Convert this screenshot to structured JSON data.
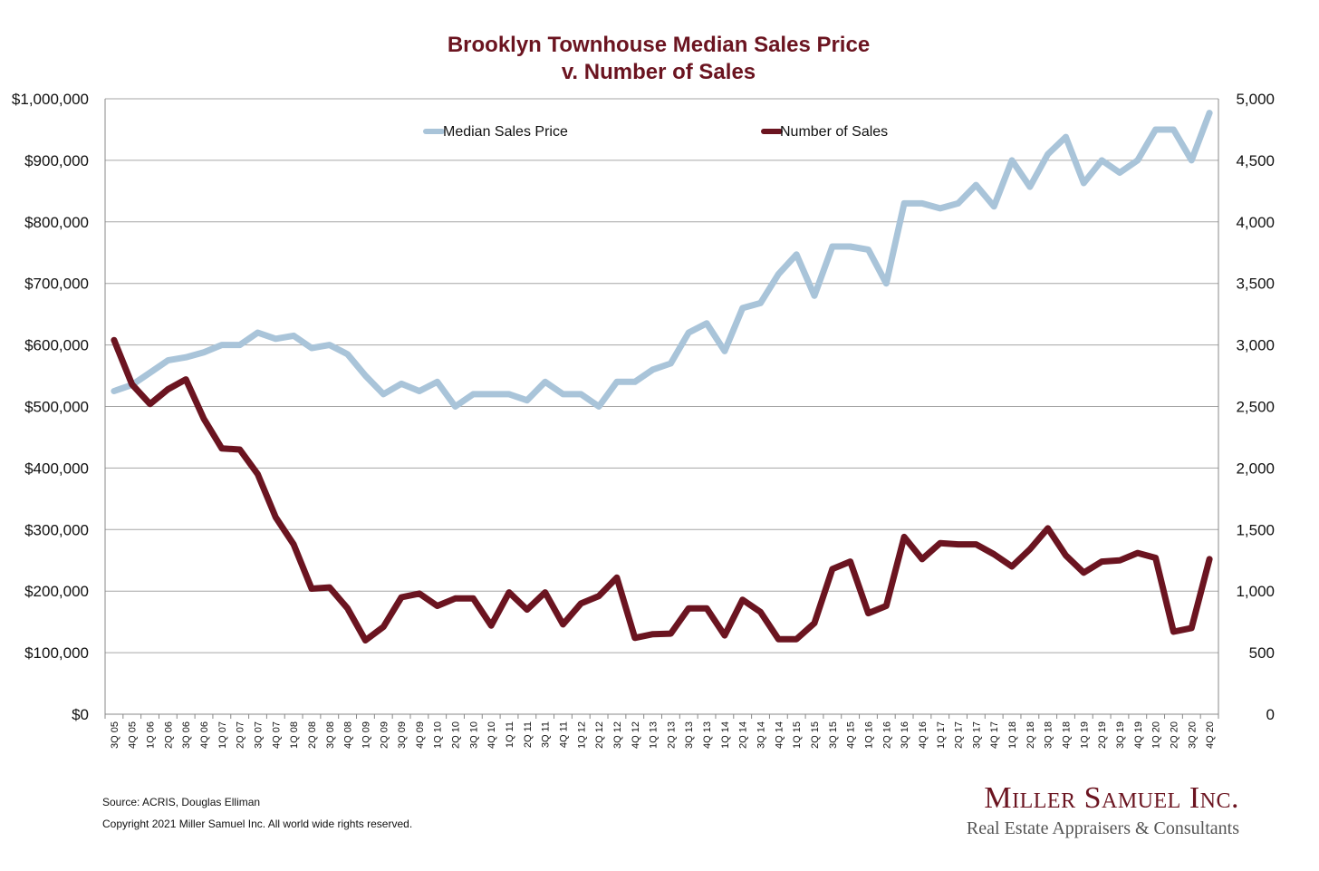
{
  "chart_data": {
    "type": "line",
    "title": [
      "Brooklyn Townhouse Median Sales Price",
      "v. Number of Sales"
    ],
    "x": [
      "3Q 05",
      "4Q 05",
      "1Q 06",
      "2Q 06",
      "3Q 06",
      "4Q 06",
      "1Q 07",
      "2Q 07",
      "3Q 07",
      "4Q 07",
      "1Q 08",
      "2Q 08",
      "3Q 08",
      "4Q 08",
      "1Q 09",
      "2Q 09",
      "3Q 09",
      "4Q 09",
      "1Q 10",
      "2Q 10",
      "3Q 10",
      "4Q 10",
      "1Q 11",
      "2Q 11",
      "3Q 11",
      "4Q 11",
      "1Q 12",
      "2Q 12",
      "3Q 12",
      "4Q 12",
      "1Q 13",
      "2Q 13",
      "3Q 13",
      "4Q 13",
      "1Q 14",
      "2Q 14",
      "3Q 14",
      "4Q 14",
      "1Q 15",
      "2Q 15",
      "3Q 15",
      "4Q 15",
      "1Q 16",
      "2Q 16",
      "3Q 16",
      "4Q 16",
      "1Q 17",
      "2Q 17",
      "3Q 17",
      "4Q 17",
      "1Q 18",
      "2Q 18",
      "3Q 18",
      "4Q 18",
      "1Q 19",
      "2Q 19",
      "3Q 19",
      "4Q 19",
      "1Q 20",
      "2Q 20",
      "3Q 20",
      "4Q 20"
    ],
    "y_left": {
      "ylim": [
        0,
        1000000
      ],
      "ticks": [
        "$0",
        "$100,000",
        "$200,000",
        "$300,000",
        "$400,000",
        "$500,000",
        "$600,000",
        "$700,000",
        "$800,000",
        "$900,000",
        "$1,000,000"
      ]
    },
    "y_right": {
      "ylim": [
        0,
        5000
      ],
      "ticks": [
        "0",
        "500",
        "1,000",
        "1,500",
        "2,000",
        "2,500",
        "3,000",
        "3,500",
        "4,000",
        "4,500",
        "5,000"
      ]
    },
    "grid": true,
    "legend_position": "top",
    "series": [
      {
        "name": "Median Sales Price",
        "axis": "left",
        "color": "#a9c4d9",
        "values": [
          525000,
          535000,
          555000,
          575000,
          580000,
          588000,
          600000,
          600000,
          620000,
          610000,
          615000,
          595000,
          600000,
          585000,
          550000,
          520000,
          537000,
          525000,
          540000,
          500000,
          520000,
          520000,
          520000,
          510000,
          540000,
          520000,
          520000,
          500000,
          540000,
          540000,
          560000,
          570000,
          620000,
          635000,
          590000,
          660000,
          668000,
          715000,
          747000,
          680000,
          760000,
          760000,
          755000,
          700000,
          830000,
          830000,
          822000,
          830000,
          860000,
          825000,
          900000,
          857000,
          910000,
          938000,
          863000,
          900000,
          880000,
          900000,
          950000,
          950000,
          900000,
          977000
        ]
      },
      {
        "name": "Number of Sales",
        "axis": "right",
        "color": "#6b1420",
        "values": [
          3040,
          2680,
          2520,
          2640,
          2720,
          2400,
          2160,
          2150,
          1950,
          1600,
          1380,
          1020,
          1030,
          860,
          600,
          710,
          950,
          980,
          880,
          940,
          940,
          720,
          990,
          850,
          990,
          730,
          900,
          960,
          1110,
          620,
          650,
          655,
          860,
          860,
          640,
          930,
          830,
          610,
          610,
          740,
          1180,
          1240,
          820,
          880,
          1440,
          1260,
          1390,
          1380,
          1380,
          1300,
          1200,
          1340,
          1510,
          1290,
          1150,
          1240,
          1250,
          1310,
          1270,
          670,
          700,
          1260
        ]
      }
    ]
  },
  "footer": {
    "source": "Source: ACRIS, Douglas Elliman",
    "copyright": "Copyright 2021 Miller Samuel Inc.  All world wide rights reserved."
  },
  "logo": {
    "name": "Miller Samuel Inc.",
    "tagline": "Real Estate Appraisers & Consultants"
  }
}
